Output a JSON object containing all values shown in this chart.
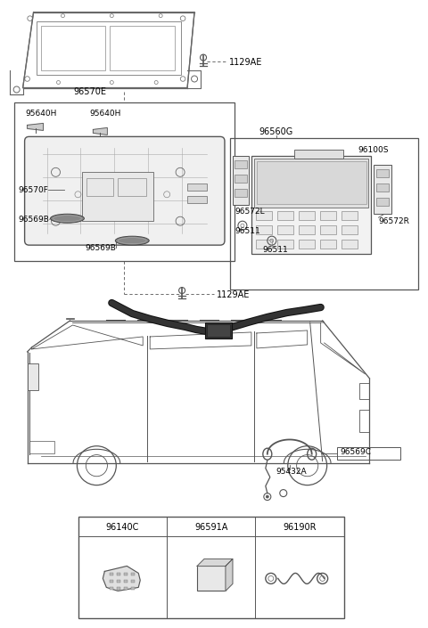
{
  "bg_color": "#ffffff",
  "line_color": "#555555",
  "text_color": "#000000",
  "fig_width": 4.8,
  "fig_height": 7.05,
  "dpi": 100,
  "labels": {
    "1129AE_top": "1129AE",
    "96570E": "96570E",
    "95640H_1": "95640H",
    "95640H_2": "95640H",
    "96570F": "96570F",
    "96569B_1": "96569B",
    "96569B_2": "96569B",
    "1129AE_bot": "1129AE",
    "96560G": "96560G",
    "96100S": "96100S",
    "96572L": "96572L",
    "96511_1": "96511",
    "96511_2": "96511",
    "96572R": "96572R",
    "95432A": "95432A",
    "96569C": "96569C",
    "96140C": "96140C",
    "96591A": "96591A",
    "96190R": "96190R"
  }
}
